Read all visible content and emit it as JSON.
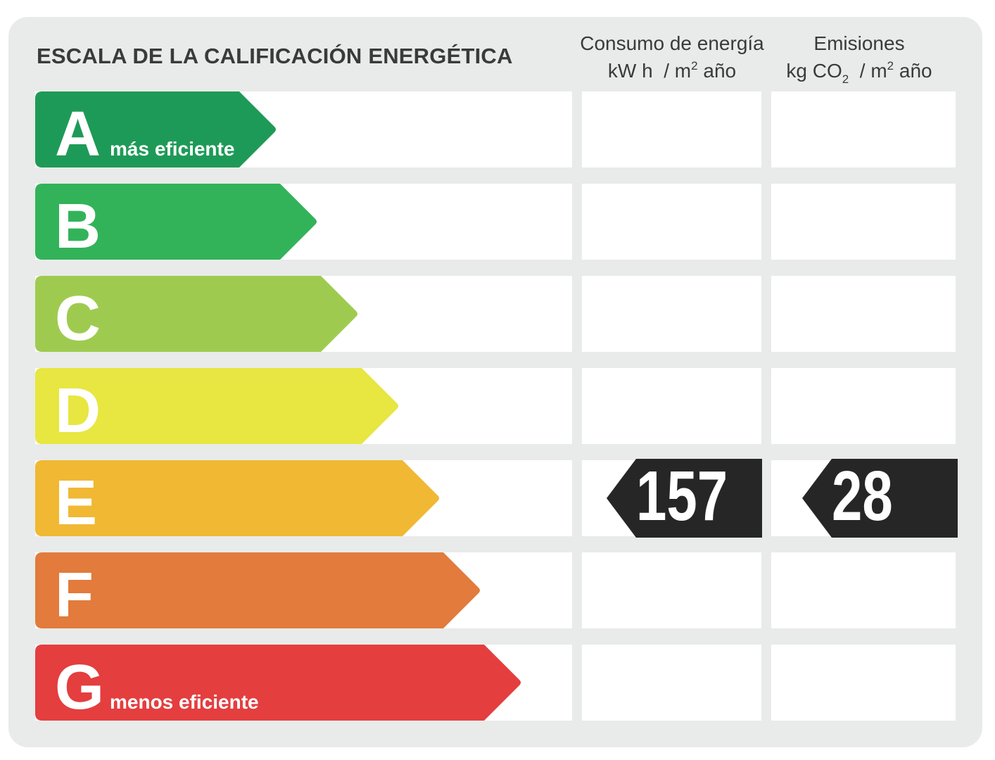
{
  "title": "ESCALA DE LA CALIFICACIÓN ENERGÉTICA",
  "columns": {
    "consumo": {
      "line1": "Consumo de energía",
      "unit_a": "kW h  / m",
      "unit_sup": "2",
      "unit_b": " año"
    },
    "emisiones": {
      "line1": "Emisiones",
      "unit_a": "kg CO",
      "unit_sub": "2",
      "unit_b": "  / m",
      "unit_sup": "2",
      "unit_c": " año"
    }
  },
  "ratings": [
    {
      "letter": "A",
      "sublabel": "más eficiente",
      "color": "#1e9a58"
    },
    {
      "letter": "B",
      "sublabel": "",
      "color": "#32b35a"
    },
    {
      "letter": "C",
      "sublabel": "",
      "color": "#9ecb4f"
    },
    {
      "letter": "D",
      "sublabel": "",
      "color": "#e8e640"
    },
    {
      "letter": "E",
      "sublabel": "",
      "color": "#f0b833"
    },
    {
      "letter": "F",
      "sublabel": "",
      "color": "#e27b3c"
    },
    {
      "letter": "G",
      "sublabel": "menos eficiente",
      "color": "#e43e3f"
    }
  ],
  "result": {
    "rating": "E",
    "consumo_value": "157",
    "emisiones_value": "28",
    "tag_color": "#262626"
  }
}
